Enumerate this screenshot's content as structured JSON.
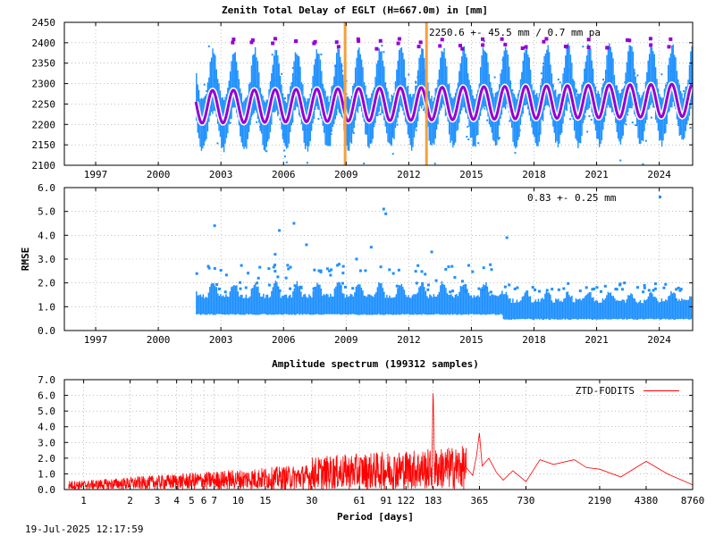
{
  "chart_data": [
    {
      "type": "scatter",
      "title": "Zenith Total Delay of EGLT (H=667.0m) in [mm]",
      "annotation": "2250.6 +-  45.5 mm /  0.7 mm pa",
      "x_ticks": [
        "1997",
        "2000",
        "2003",
        "2006",
        "2009",
        "2012",
        "2015",
        "2018",
        "2021",
        "2024"
      ],
      "y_ticks": [
        "2100",
        "2150",
        "2200",
        "2250",
        "2300",
        "2350",
        "2400",
        "2450"
      ],
      "xlim": [
        1995.5,
        2025.6
      ],
      "ylim": [
        2100,
        2450
      ],
      "data_start": 2001.8,
      "data_end": 2025.55,
      "mean": 2250.6,
      "seasonal_amplitude": 40,
      "trend_mm_per_year": 0.7,
      "vertical_markers": [
        2008.95,
        2012.85
      ],
      "colors": {
        "observations": "#1e90ff",
        "model": "#9400d3",
        "outliers": "#9400d3",
        "markers": "#f5a040"
      }
    },
    {
      "type": "scatter",
      "ylabel": "RMSE",
      "annotation": "0.83 +-  0.25 mm",
      "x_ticks": [
        "1997",
        "2000",
        "2003",
        "2006",
        "2009",
        "2012",
        "2015",
        "2018",
        "2021",
        "2024"
      ],
      "y_ticks": [
        "0.0",
        "1.0",
        "2.0",
        "3.0",
        "4.0",
        "5.0",
        "6.0"
      ],
      "xlim": [
        1995.5,
        2025.6
      ],
      "ylim": [
        0,
        6
      ],
      "outliers": [
        [
          2002.7,
          4.4
        ],
        [
          2004.8,
          2.2
        ],
        [
          2005.3,
          2.6
        ],
        [
          2005.6,
          3.2
        ],
        [
          2005.8,
          4.2
        ],
        [
          2006.5,
          4.5
        ],
        [
          2007.1,
          3.6
        ],
        [
          2008.2,
          2.5
        ],
        [
          2009.5,
          3.0
        ],
        [
          2010.2,
          3.5
        ],
        [
          2010.8,
          5.1
        ],
        [
          2010.9,
          4.9
        ],
        [
          2013.1,
          3.3
        ],
        [
          2016.7,
          3.9
        ],
        [
          2024.8,
          1.3
        ]
      ],
      "colors": {
        "points": "#1e90ff"
      }
    },
    {
      "type": "line",
      "title": "Amplitude spectrum (199312 samples)",
      "xlabel": "Period [days]",
      "x_ticks": [
        "1",
        "2",
        "3",
        "4",
        "5",
        "6",
        "7",
        "10",
        "15",
        "30",
        "61",
        "91",
        "122",
        "183",
        "365",
        "730",
        "2190",
        "4380",
        "8760"
      ],
      "y_ticks": [
        "0.0",
        "1.0",
        "2.0",
        "3.0",
        "4.0",
        "5.0",
        "6.0",
        "7.0"
      ],
      "ylim": [
        0,
        7
      ],
      "legend": "ZTD-FODITS",
      "legend_position": "top-right",
      "peaks": [
        {
          "period": 1,
          "amplitude": 1.1
        },
        {
          "period": 183,
          "amplitude": 6.4
        },
        {
          "period": 365,
          "amplitude": 3.6
        },
        {
          "period": 730,
          "amplitude": 0.5
        },
        {
          "period": 2190,
          "amplitude": 1.3
        },
        {
          "period": 4380,
          "amplitude": 1.8
        },
        {
          "period": 8760,
          "amplitude": 0.3
        }
      ],
      "colors": {
        "line": "#ff0000"
      }
    }
  ],
  "footer": {
    "timestamp": "19-Jul-2025 12:17:59"
  }
}
